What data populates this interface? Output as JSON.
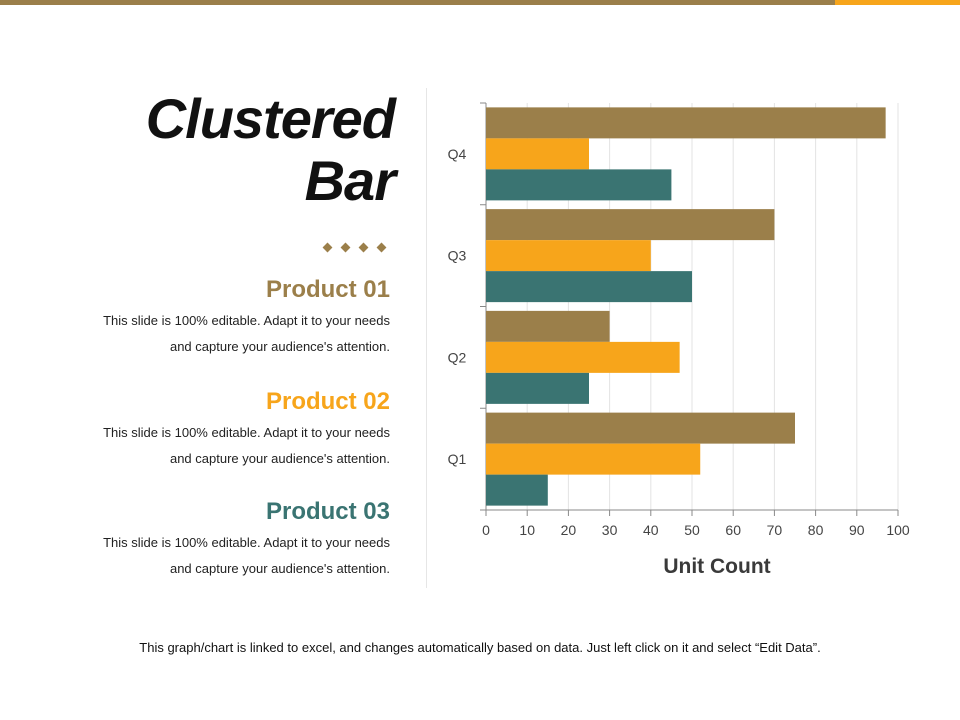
{
  "slide": {
    "title_line1": "Clustered",
    "title_line2": "Bar",
    "footer": "This graph/chart is linked to excel, and changes automatically based on data. Just left click on it and select “Edit Data”."
  },
  "products": [
    {
      "name": "Product 01",
      "line1": "This slide is 100% editable. Adapt it to your needs",
      "line2": "and capture your audience's attention.",
      "color": "#9b7f4a"
    },
    {
      "name": "Product 02",
      "line1": "This slide is 100% editable. Adapt it to your needs",
      "line2": "and capture your audience's attention.",
      "color": "#f7a51b"
    },
    {
      "name": "Product 03",
      "line1": "This slide is 100% editable. Adapt it to your needs",
      "line2": "and capture your audience's attention.",
      "color": "#3a7472"
    }
  ],
  "chart_data": {
    "type": "bar",
    "orientation": "horizontal",
    "categories": [
      "Q1",
      "Q2",
      "Q3",
      "Q4"
    ],
    "series": [
      {
        "name": "Product 01",
        "color": "#9b7f4a",
        "values": [
          75,
          30,
          70,
          97
        ]
      },
      {
        "name": "Product 02",
        "color": "#f7a51b",
        "values": [
          52,
          47,
          40,
          25
        ]
      },
      {
        "name": "Product 03",
        "color": "#3a7472",
        "values": [
          15,
          25,
          50,
          45
        ]
      }
    ],
    "xlabel": "Unit Count",
    "xlim": [
      0,
      100
    ],
    "xticks": [
      0,
      10,
      20,
      30,
      40,
      50,
      60,
      70,
      80,
      90,
      100
    ],
    "grid": true
  }
}
